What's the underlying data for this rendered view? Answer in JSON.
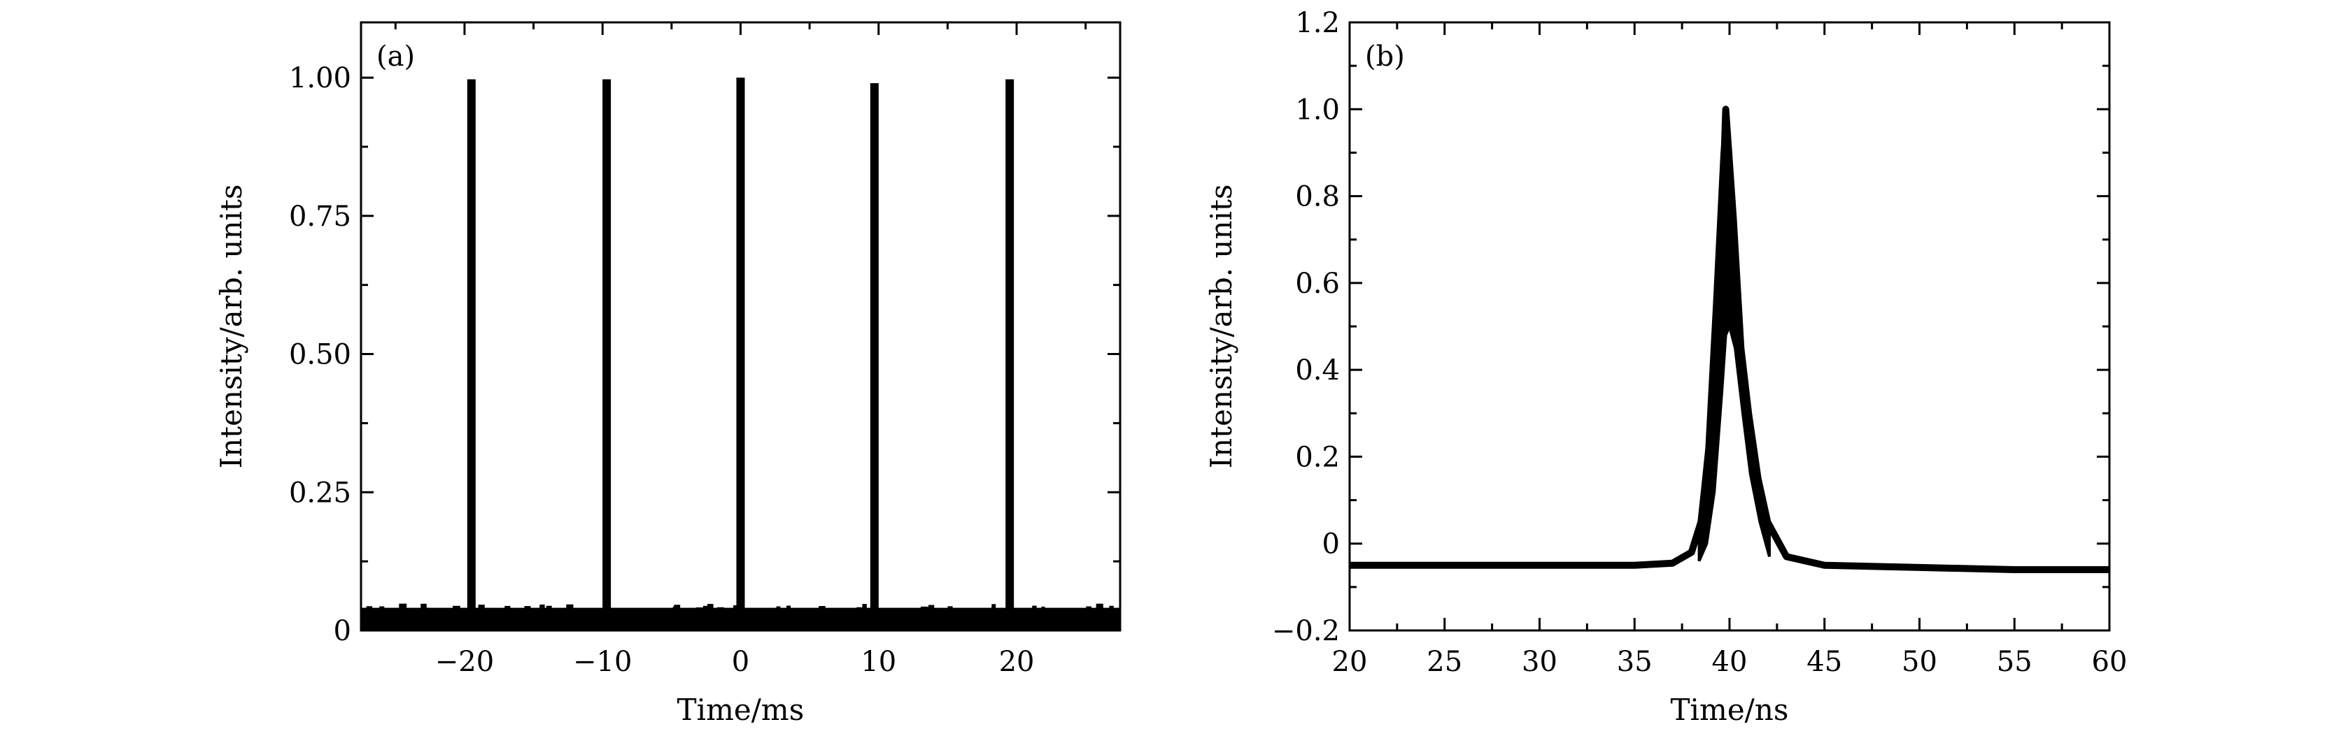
{
  "chart_data": [
    {
      "type": "line",
      "panel_label": "(a)",
      "xlabel": "Time/ms",
      "ylabel": "Intensity/arb. units",
      "xlim": [
        -27.5,
        27.5
      ],
      "ylim": [
        0,
        1.1
      ],
      "x_ticks": [
        -20,
        -10,
        0,
        10,
        20
      ],
      "x_tick_labels": [
        "−20",
        "−10",
        "0",
        "10",
        "20"
      ],
      "y_ticks": [
        0,
        0.25,
        0.5,
        0.75,
        1.0
      ],
      "y_tick_labels": [
        "0",
        "0.25",
        "0.50",
        "0.75",
        "1.00"
      ],
      "baseline": 0.035,
      "series": [
        {
          "peaks": [
            {
              "x": -19.5,
              "y": 0.997
            },
            {
              "x": -9.7,
              "y": 0.997
            },
            {
              "x": 0.0,
              "y": 1.0
            },
            {
              "x": 9.7,
              "y": 0.99
            },
            {
              "x": 19.5,
              "y": 0.997
            }
          ]
        }
      ],
      "grid": false,
      "color": "#000000"
    },
    {
      "type": "line",
      "panel_label": "(b)",
      "xlabel": "Time/ns",
      "ylabel": "Intensity/arb. units",
      "xlim": [
        20,
        60
      ],
      "ylim": [
        -0.2,
        1.2
      ],
      "x_ticks": [
        20,
        25,
        30,
        35,
        40,
        45,
        50,
        55,
        60
      ],
      "x_tick_labels": [
        "20",
        "25",
        "30",
        "35",
        "40",
        "45",
        "50",
        "55",
        "60"
      ],
      "y_ticks": [
        -0.2,
        0,
        0.2,
        0.4,
        0.6,
        0.8,
        1.0,
        1.2
      ],
      "y_tick_labels": [
        "−0.2",
        "0",
        "0.2",
        "0.4",
        "0.6",
        "0.8",
        "1.0",
        "1.2"
      ],
      "series": [
        {
          "x": [
            20,
            30,
            35,
            37,
            38,
            38.5,
            39,
            39.5,
            39.8,
            40.2,
            40.6,
            41,
            41.5,
            42,
            43,
            45,
            50,
            55,
            60
          ],
          "y": [
            -0.05,
            -0.05,
            -0.05,
            -0.045,
            -0.02,
            0.05,
            0.25,
            0.6,
            1.0,
            0.75,
            0.45,
            0.3,
            0.15,
            0.05,
            -0.03,
            -0.05,
            -0.055,
            -0.06,
            -0.06
          ]
        }
      ],
      "grid": false,
      "color": "#000000"
    }
  ]
}
